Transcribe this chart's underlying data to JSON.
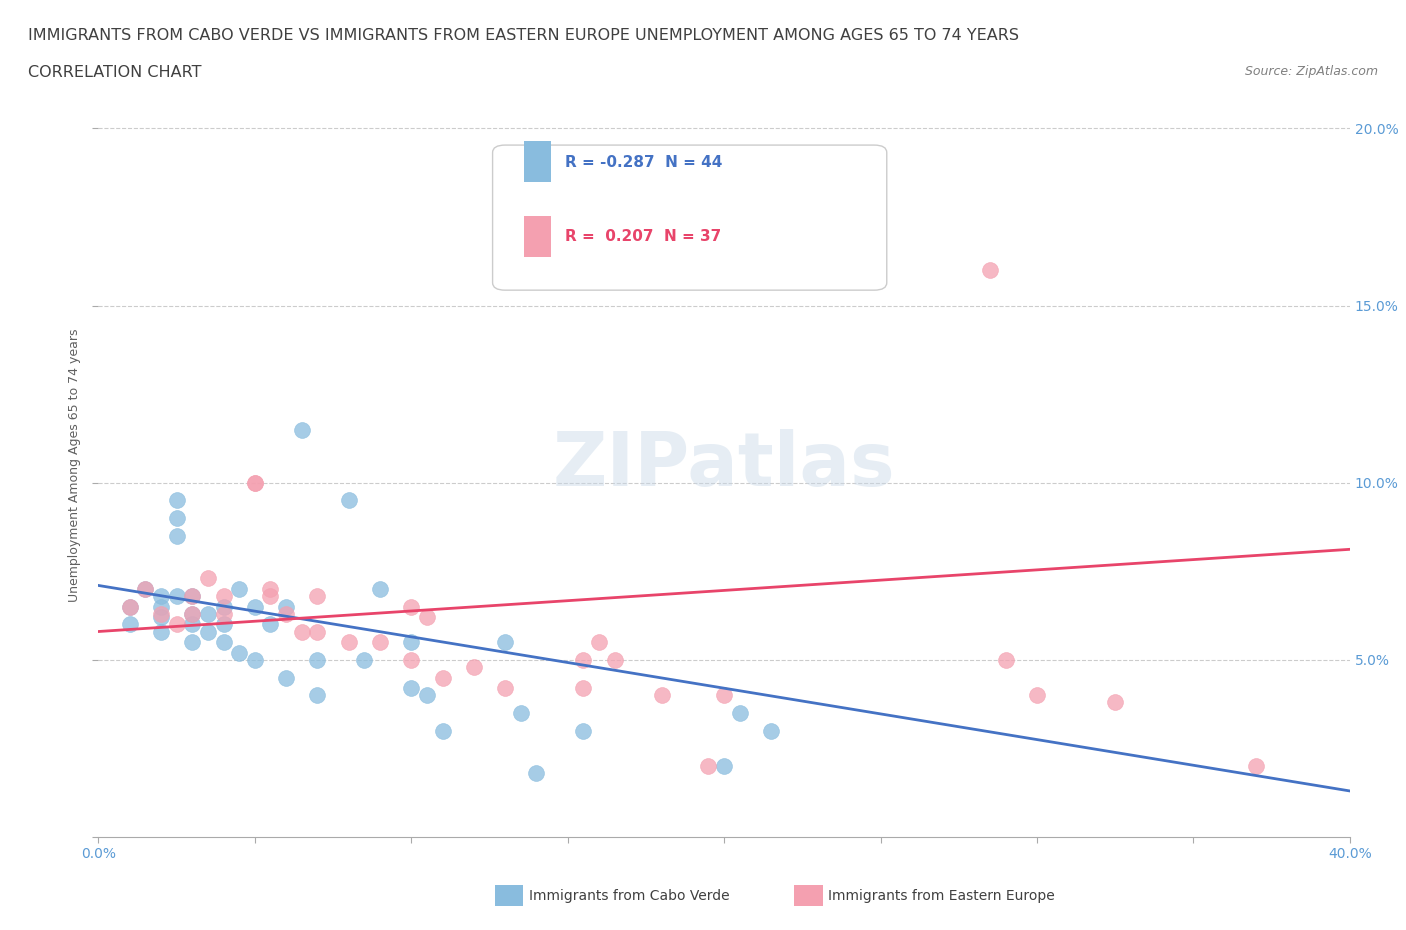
{
  "title_line1": "IMMIGRANTS FROM CABO VERDE VS IMMIGRANTS FROM EASTERN EUROPE UNEMPLOYMENT AMONG AGES 65 TO 74 YEARS",
  "title_line2": "CORRELATION CHART",
  "source_text": "Source: ZipAtlas.com",
  "ylabel": "Unemployment Among Ages 65 to 74 years",
  "xlim": [
    0.0,
    0.4
  ],
  "ylim": [
    0.0,
    0.21
  ],
  "x_ticks": [
    0.0,
    0.05,
    0.1,
    0.15,
    0.2,
    0.25,
    0.3,
    0.35,
    0.4
  ],
  "x_tick_labels": [
    "0.0%",
    "",
    "",
    "",
    "",
    "",
    "",
    "",
    "40.0%"
  ],
  "y_ticks": [
    0.0,
    0.05,
    0.1,
    0.15,
    0.2
  ],
  "y_tick_labels": [
    "",
    "5.0%",
    "10.0%",
    "15.0%",
    "20.0%"
  ],
  "cabo_verde_color": "#89BCDE",
  "eastern_europe_color": "#F4A0B0",
  "cabo_verde_label": "Immigrants from Cabo Verde",
  "eastern_europe_label": "Immigrants from Eastern Europe",
  "cabo_verde_R": -0.287,
  "cabo_verde_N": 44,
  "eastern_europe_R": 0.207,
  "eastern_europe_N": 37,
  "background_color": "#ffffff",
  "grid_color": "#cccccc",
  "cabo_verde_scatter_x": [
    0.01,
    0.01,
    0.015,
    0.02,
    0.02,
    0.02,
    0.02,
    0.025,
    0.025,
    0.025,
    0.025,
    0.03,
    0.03,
    0.03,
    0.03,
    0.035,
    0.035,
    0.04,
    0.04,
    0.04,
    0.045,
    0.045,
    0.05,
    0.05,
    0.055,
    0.06,
    0.06,
    0.065,
    0.07,
    0.07,
    0.08,
    0.085,
    0.09,
    0.1,
    0.1,
    0.105,
    0.11,
    0.13,
    0.135,
    0.14,
    0.155,
    0.2,
    0.205,
    0.215
  ],
  "cabo_verde_scatter_y": [
    0.065,
    0.06,
    0.07,
    0.065,
    0.068,
    0.062,
    0.058,
    0.095,
    0.09,
    0.085,
    0.068,
    0.068,
    0.063,
    0.06,
    0.055,
    0.063,
    0.058,
    0.065,
    0.06,
    0.055,
    0.07,
    0.052,
    0.065,
    0.05,
    0.06,
    0.065,
    0.045,
    0.115,
    0.05,
    0.04,
    0.095,
    0.05,
    0.07,
    0.055,
    0.042,
    0.04,
    0.03,
    0.055,
    0.035,
    0.018,
    0.03,
    0.02,
    0.035,
    0.03
  ],
  "eastern_europe_scatter_x": [
    0.01,
    0.015,
    0.02,
    0.025,
    0.03,
    0.03,
    0.035,
    0.04,
    0.04,
    0.05,
    0.05,
    0.055,
    0.055,
    0.06,
    0.065,
    0.07,
    0.07,
    0.08,
    0.09,
    0.1,
    0.1,
    0.105,
    0.11,
    0.12,
    0.13,
    0.155,
    0.155,
    0.16,
    0.165,
    0.18,
    0.195,
    0.2,
    0.285,
    0.29,
    0.3,
    0.325,
    0.37
  ],
  "eastern_europe_scatter_y": [
    0.065,
    0.07,
    0.063,
    0.06,
    0.068,
    0.063,
    0.073,
    0.068,
    0.063,
    0.1,
    0.1,
    0.07,
    0.068,
    0.063,
    0.058,
    0.068,
    0.058,
    0.055,
    0.055,
    0.065,
    0.05,
    0.062,
    0.045,
    0.048,
    0.042,
    0.042,
    0.05,
    0.055,
    0.05,
    0.04,
    0.02,
    0.04,
    0.16,
    0.05,
    0.04,
    0.038,
    0.02
  ],
  "cabo_verde_line_y_intercept": 0.071,
  "cabo_verde_line_slope": -0.145,
  "eastern_europe_line_y_intercept": 0.058,
  "eastern_europe_line_slope": 0.058,
  "cabo_verde_line_color": "#4472C4",
  "eastern_europe_line_color": "#E8446A",
  "tick_label_color": "#5B9BD5",
  "title_color": "#404040",
  "source_color": "#808080"
}
